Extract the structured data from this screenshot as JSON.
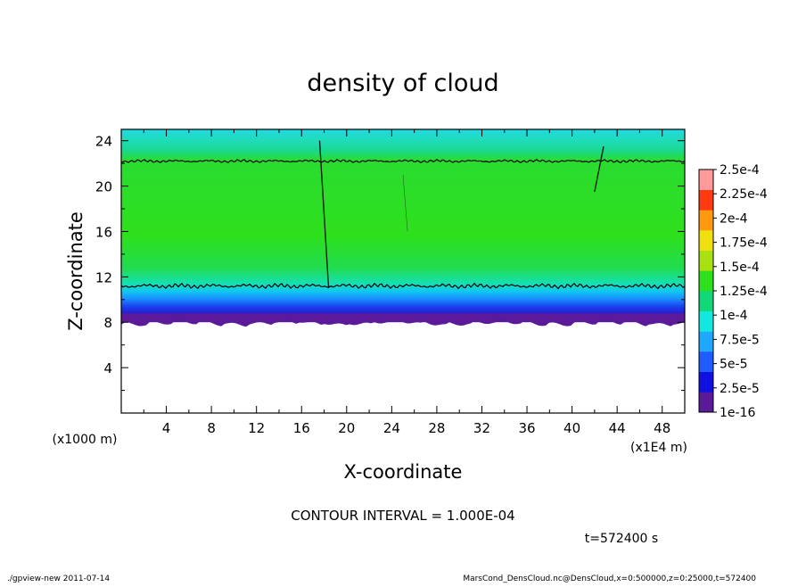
{
  "chart_data": {
    "type": "heatmap",
    "title": "density of cloud",
    "xlabel": "X-coordinate",
    "ylabel": "Z-coordinate",
    "x_unit": "(x1E4 m)",
    "y_unit": "(x1000 m)",
    "xlim": [
      0,
      50
    ],
    "ylim": [
      0,
      25
    ],
    "x_ticks": [
      "4",
      "8",
      "12",
      "16",
      "20",
      "24",
      "28",
      "32",
      "36",
      "40",
      "44",
      "48"
    ],
    "y_ticks": [
      "4",
      "8",
      "12",
      "16",
      "20",
      "24"
    ],
    "colorbar": {
      "labels": [
        "1e-16",
        "2.5e-5",
        "5e-5",
        "7.5e-5",
        "1e-4",
        "1.25e-4",
        "1.5e-4",
        "1.75e-4",
        "2e-4",
        "2.25e-4",
        "2.5e-4"
      ],
      "colors": [
        "#5a1a9a",
        "#1010e0",
        "#1e5cff",
        "#1ea8ff",
        "#10e8e0",
        "#10d878",
        "#2ee01c",
        "#a8e010",
        "#f0e010",
        "#ff9a10",
        "#ff3a10",
        "#ff9a9a"
      ]
    },
    "cloud_base_z": 8,
    "lower_contour_z": 11.2,
    "upper_contour_z": 22.2,
    "contour_interval_text": "CONTOUR INTERVAL = 1.000E-04",
    "time_text": "t=572400 s"
  },
  "footer": {
    "left": "./gpview-new  2011-07-14",
    "right": "MarsCond_DensCloud.nc@DensCloud,x=0:500000,z=0:25000,t=572400"
  }
}
